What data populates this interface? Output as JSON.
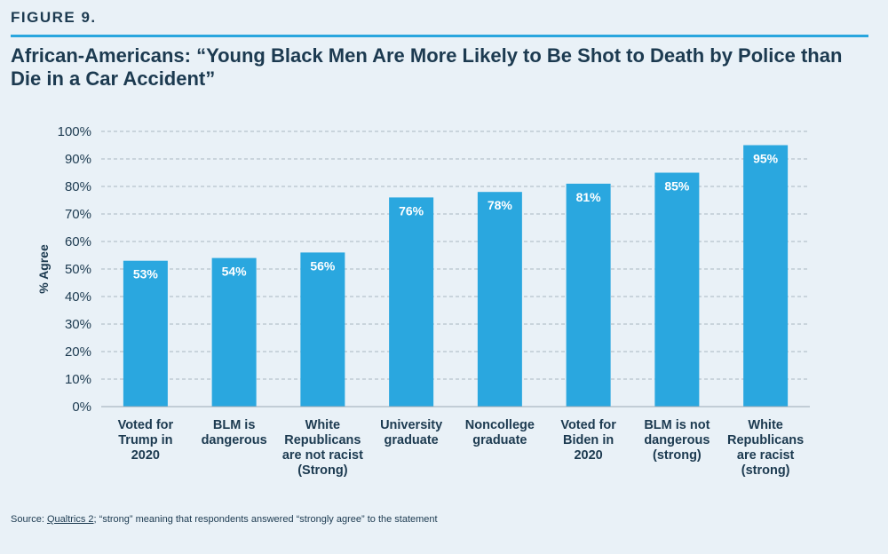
{
  "figure_label": "FIGURE 9.",
  "chart_data": {
    "type": "bar",
    "title": "African-Americans: “Young Black Men Are More Likely to Be Shot to Death by Police than Die in a Car Accident”",
    "xlabel": "",
    "ylabel": "% Agree",
    "ylim": [
      0,
      100
    ],
    "yticks": [
      "0%",
      "10%",
      "20%",
      "30%",
      "40%",
      "50%",
      "60%",
      "70%",
      "80%",
      "90%",
      "100%"
    ],
    "categories": [
      [
        "Voted for",
        "Trump in",
        "2020"
      ],
      [
        "BLM is",
        "dangerous"
      ],
      [
        "White",
        "Republicans",
        "are not racist",
        "(Strong)"
      ],
      [
        "University",
        "graduate"
      ],
      [
        "Noncollege",
        "graduate"
      ],
      [
        "Voted for",
        "Biden in",
        "2020"
      ],
      [
        "BLM is not",
        "dangerous",
        "(strong)"
      ],
      [
        "White",
        "Republicans",
        "are racist",
        "(strong)"
      ]
    ],
    "values": [
      53,
      54,
      56,
      76,
      78,
      81,
      85,
      95
    ],
    "value_labels": [
      "53%",
      "54%",
      "56%",
      "76%",
      "78%",
      "81%",
      "85%",
      "95%"
    ],
    "bar_color": "#2aa7df",
    "grid": true
  },
  "source": {
    "prefix": "Source: ",
    "link_text": "Qualtrics 2",
    "suffix": "; “strong” meaning that respondents answered “strongly agree” to the statement"
  }
}
